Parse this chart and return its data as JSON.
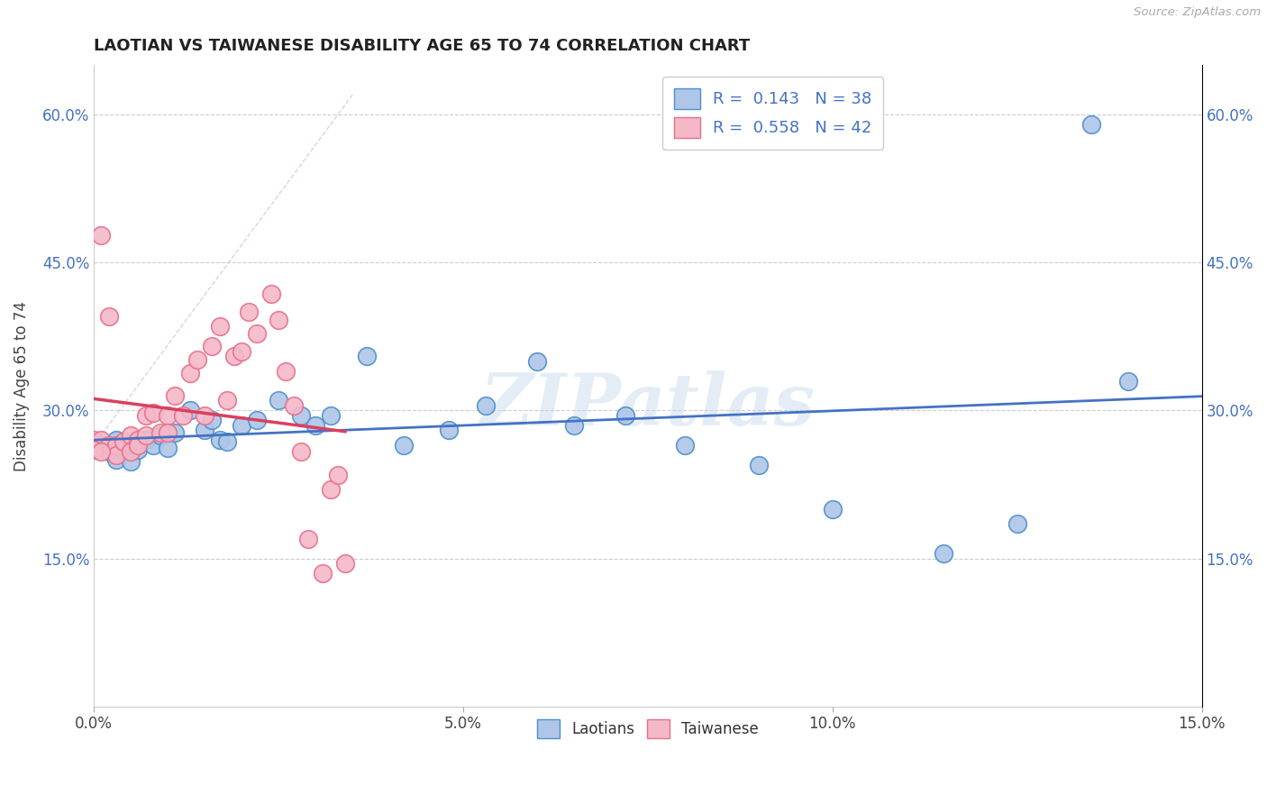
{
  "title": "LAOTIAN VS TAIWANESE DISABILITY AGE 65 TO 74 CORRELATION CHART",
  "source": "Source: ZipAtlas.com",
  "ylabel_label": "Disability Age 65 to 74",
  "xlim": [
    0.0,
    0.15
  ],
  "ylim": [
    0.0,
    0.65
  ],
  "xticks": [
    0.0,
    0.05,
    0.1,
    0.15
  ],
  "yticks": [
    0.15,
    0.3,
    0.45,
    0.6
  ],
  "xticklabels": [
    "0.0%",
    "5.0%",
    "10.0%",
    "15.0%"
  ],
  "yticklabels": [
    "15.0%",
    "30.0%",
    "45.0%",
    "60.0%"
  ],
  "laotian_color": "#aec6e8",
  "taiwanese_color": "#f4b8c8",
  "laotian_edge_color": "#4d8fcc",
  "taiwanese_edge_color": "#e8708a",
  "trendline_laotian_color": "#4472c4",
  "trendline_taiwanese_color": "#d94060",
  "watermark": "ZIPatlas",
  "laotian_x": [
    0.001,
    0.002,
    0.003,
    0.003,
    0.004,
    0.005,
    0.005,
    0.006,
    0.007,
    0.008,
    0.009,
    0.01,
    0.011,
    0.013,
    0.015,
    0.016,
    0.017,
    0.018,
    0.02,
    0.022,
    0.025,
    0.028,
    0.03,
    0.032,
    0.037,
    0.042,
    0.048,
    0.053,
    0.06,
    0.065,
    0.072,
    0.08,
    0.09,
    0.1,
    0.115,
    0.125,
    0.135,
    0.14
  ],
  "laotian_y": [
    0.265,
    0.258,
    0.27,
    0.25,
    0.26,
    0.265,
    0.248,
    0.26,
    0.27,
    0.265,
    0.275,
    0.262,
    0.278,
    0.3,
    0.28,
    0.29,
    0.27,
    0.268,
    0.285,
    0.29,
    0.31,
    0.295,
    0.285,
    0.295,
    0.355,
    0.265,
    0.28,
    0.305,
    0.35,
    0.285,
    0.295,
    0.265,
    0.245,
    0.2,
    0.155,
    0.185,
    0.59,
    0.33
  ],
  "taiwanese_x": [
    0.0,
    0.001,
    0.001,
    0.002,
    0.002,
    0.003,
    0.003,
    0.004,
    0.005,
    0.005,
    0.006,
    0.006,
    0.007,
    0.007,
    0.008,
    0.009,
    0.01,
    0.01,
    0.011,
    0.012,
    0.013,
    0.014,
    0.015,
    0.016,
    0.017,
    0.018,
    0.019,
    0.02,
    0.021,
    0.022,
    0.024,
    0.025,
    0.026,
    0.027,
    0.028,
    0.029,
    0.031,
    0.032,
    0.033,
    0.034,
    0.0,
    0.001
  ],
  "taiwanese_y": [
    0.27,
    0.478,
    0.27,
    0.395,
    0.265,
    0.265,
    0.255,
    0.268,
    0.275,
    0.258,
    0.27,
    0.265,
    0.295,
    0.275,
    0.298,
    0.278,
    0.295,
    0.278,
    0.315,
    0.295,
    0.338,
    0.352,
    0.295,
    0.365,
    0.385,
    0.31,
    0.355,
    0.36,
    0.4,
    0.378,
    0.418,
    0.392,
    0.34,
    0.305,
    0.258,
    0.17,
    0.135,
    0.22,
    0.235,
    0.145,
    0.26,
    0.258
  ]
}
